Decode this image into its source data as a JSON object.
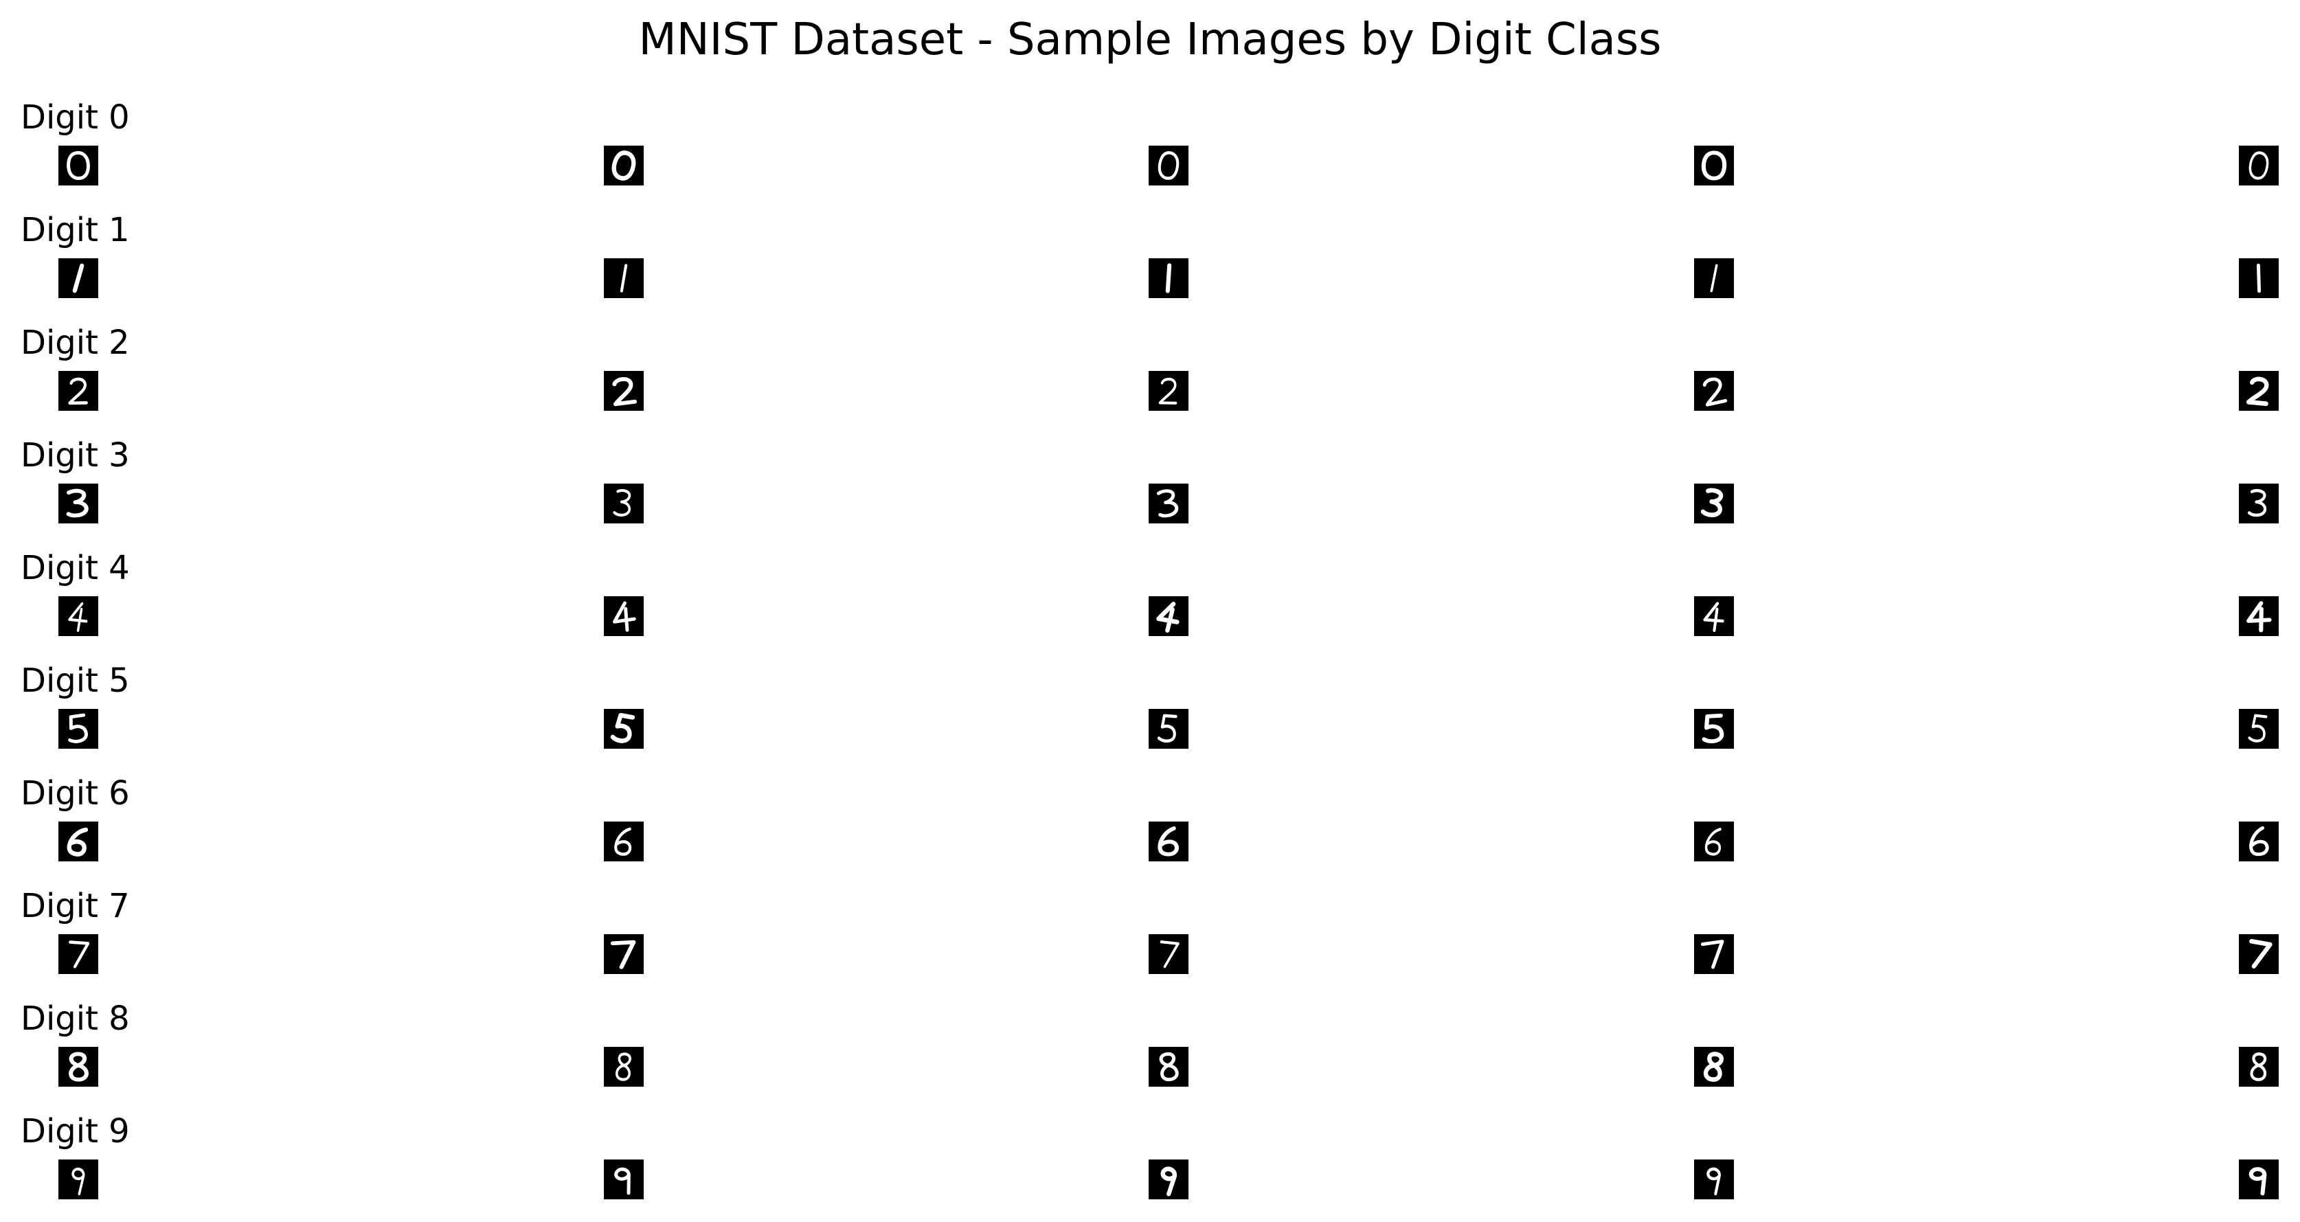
{
  "figure": {
    "title": "MNIST Dataset - Sample Images by Digit Class"
  },
  "rows": [
    {
      "label": "Digit 0",
      "digit": "0",
      "samples": 5
    },
    {
      "label": "Digit 1",
      "digit": "1",
      "samples": 5
    },
    {
      "label": "Digit 2",
      "digit": "2",
      "samples": 5
    },
    {
      "label": "Digit 3",
      "digit": "3",
      "samples": 5
    },
    {
      "label": "Digit 4",
      "digit": "4",
      "samples": 5
    },
    {
      "label": "Digit 5",
      "digit": "5",
      "samples": 5
    },
    {
      "label": "Digit 6",
      "digit": "6",
      "samples": 5
    },
    {
      "label": "Digit 7",
      "digit": "7",
      "samples": 5
    },
    {
      "label": "Digit 8",
      "digit": "8",
      "samples": 5
    },
    {
      "label": "Digit 9",
      "digit": "9",
      "samples": 5
    }
  ],
  "colors": {
    "tile_background": "#000000",
    "digit_stroke": "#ffffff",
    "text": "#000000"
  }
}
